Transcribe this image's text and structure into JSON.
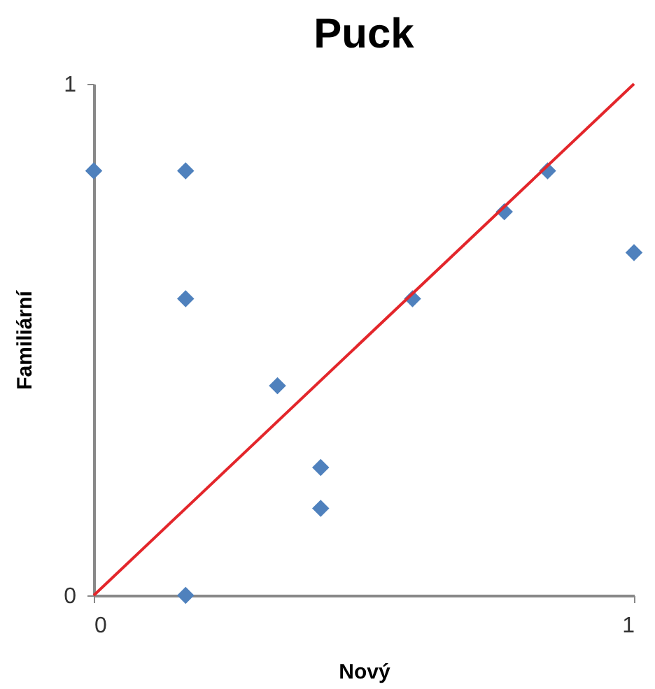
{
  "chart_data": {
    "type": "scatter",
    "title": "Puck",
    "xlabel": "Nový",
    "ylabel": "Familiární",
    "xlim": [
      0,
      1
    ],
    "ylim": [
      0,
      1
    ],
    "xticks": [
      0,
      1
    ],
    "yticks": [
      0,
      1
    ],
    "grid": false,
    "marker": "diamond",
    "series": [
      {
        "color": "#4f81bd",
        "x": [
          0,
          0.17,
          0.17,
          0.17,
          0.34,
          0.42,
          0.42,
          0.59,
          0.76,
          0.84,
          1
        ],
        "values": [
          0.83,
          0.83,
          0.58,
          0,
          0.41,
          0.25,
          0.17,
          0.58,
          0.75,
          0.83,
          0.67
        ]
      },
      {
        "type": "line",
        "color": "#e3262b",
        "x": [
          0,
          1
        ],
        "values": [
          0,
          1
        ],
        "marker": "none",
        "line_style": "solid"
      }
    ]
  }
}
